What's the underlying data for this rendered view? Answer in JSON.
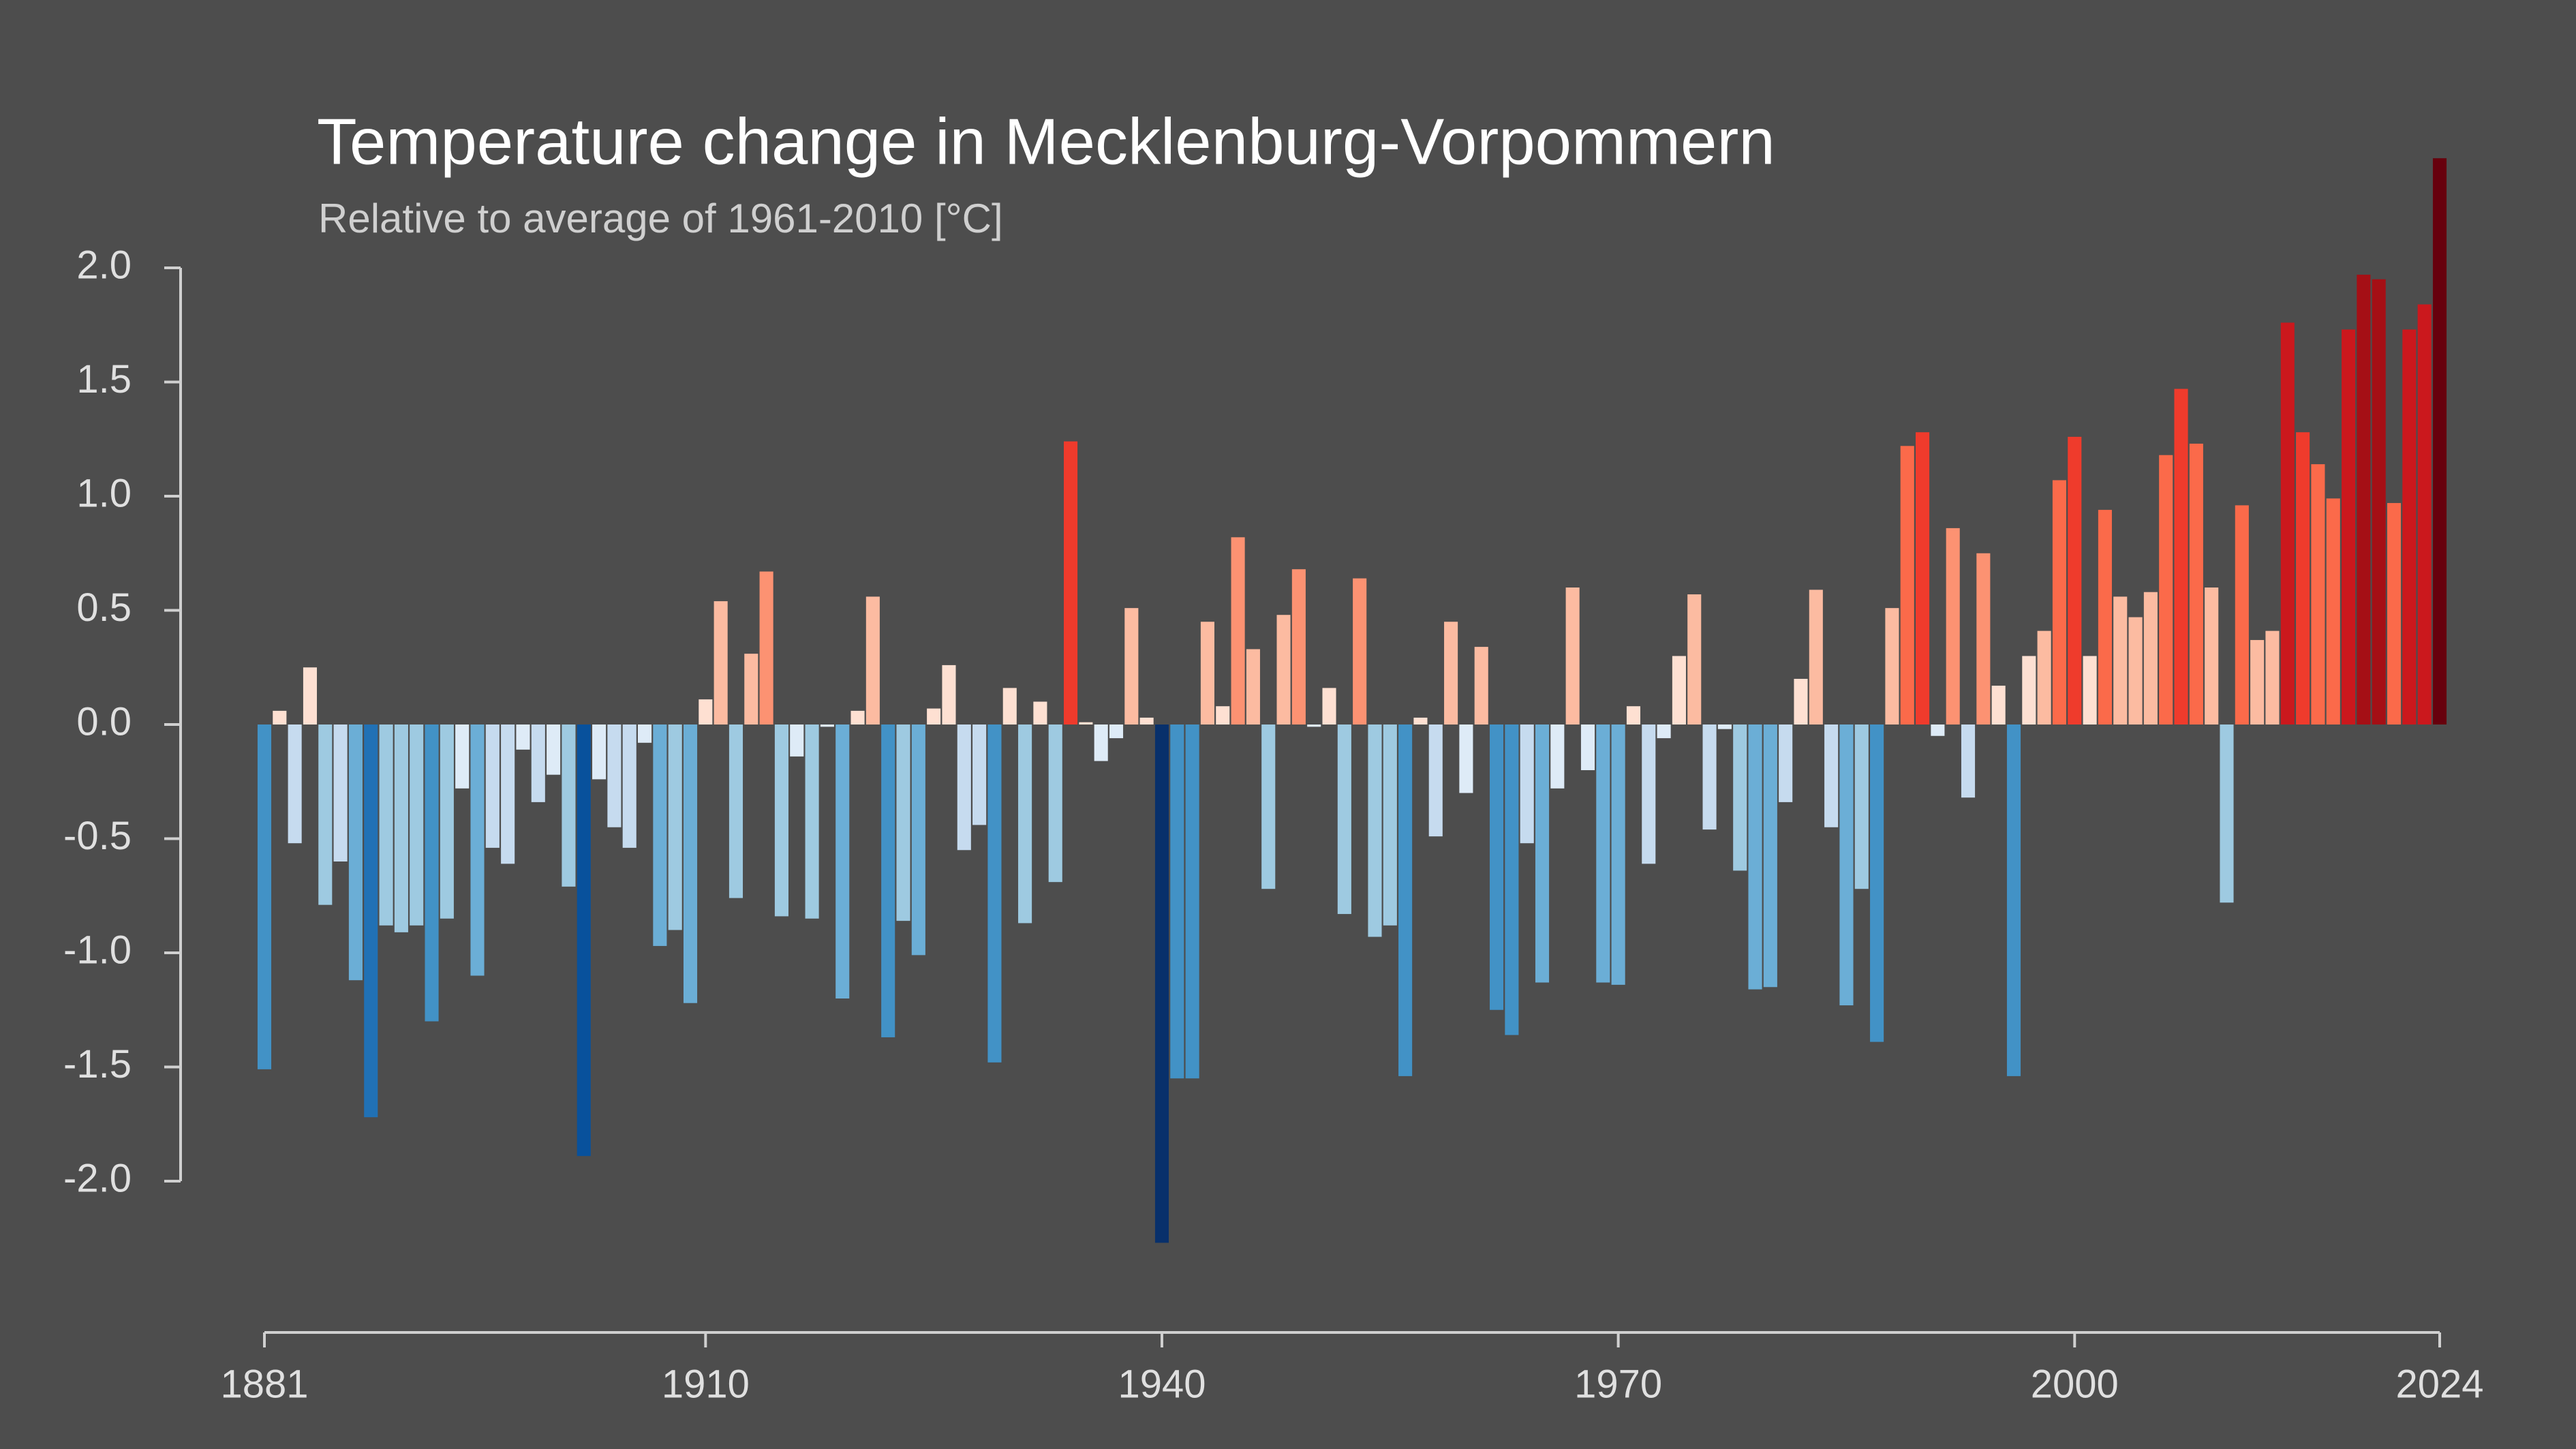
{
  "chart_data": {
    "type": "bar",
    "title": "Temperature change in Mecklenburg-Vorpommern",
    "subtitle": "Relative to average of 1961-2010  [°C]",
    "x": [
      1881,
      1882,
      1883,
      1884,
      1885,
      1886,
      1887,
      1888,
      1889,
      1890,
      1891,
      1892,
      1893,
      1894,
      1895,
      1896,
      1897,
      1898,
      1899,
      1900,
      1901,
      1902,
      1903,
      1904,
      1905,
      1906,
      1907,
      1908,
      1909,
      1910,
      1911,
      1912,
      1913,
      1914,
      1915,
      1916,
      1917,
      1918,
      1919,
      1920,
      1921,
      1922,
      1923,
      1924,
      1925,
      1926,
      1927,
      1928,
      1929,
      1930,
      1931,
      1932,
      1933,
      1934,
      1935,
      1936,
      1937,
      1938,
      1939,
      1940,
      1941,
      1942,
      1943,
      1944,
      1945,
      1946,
      1947,
      1948,
      1949,
      1950,
      1951,
      1952,
      1953,
      1954,
      1955,
      1956,
      1957,
      1958,
      1959,
      1960,
      1961,
      1962,
      1963,
      1964,
      1965,
      1966,
      1967,
      1968,
      1969,
      1970,
      1971,
      1972,
      1973,
      1974,
      1975,
      1976,
      1977,
      1978,
      1979,
      1980,
      1981,
      1982,
      1983,
      1984,
      1985,
      1986,
      1987,
      1988,
      1989,
      1990,
      1991,
      1992,
      1993,
      1994,
      1995,
      1996,
      1997,
      1998,
      1999,
      2000,
      2001,
      2002,
      2003,
      2004,
      2005,
      2006,
      2007,
      2008,
      2009,
      2010,
      2011,
      2012,
      2013,
      2014,
      2015,
      2016,
      2017,
      2018,
      2019,
      2020,
      2021,
      2022,
      2023,
      2024
    ],
    "values": [
      -1.51,
      0.06,
      -0.52,
      0.25,
      -0.79,
      -0.6,
      -1.12,
      -1.72,
      -0.88,
      -0.91,
      -0.88,
      -1.3,
      -0.85,
      -0.28,
      -1.1,
      -0.54,
      -0.61,
      -0.11,
      -0.34,
      -0.22,
      -0.71,
      -1.89,
      -0.24,
      -0.45,
      -0.54,
      -0.08,
      -0.97,
      -0.9,
      -1.22,
      0.11,
      0.54,
      -0.76,
      0.31,
      0.67,
      -0.84,
      -0.14,
      -0.85,
      -0.01,
      -1.2,
      0.06,
      0.56,
      -1.37,
      -0.86,
      -1.01,
      0.07,
      0.26,
      -0.55,
      -0.44,
      -1.48,
      0.16,
      -0.87,
      0.1,
      -0.69,
      1.24,
      0.01,
      -0.16,
      -0.06,
      0.51,
      0.03,
      -2.27,
      -1.55,
      -1.55,
      0.45,
      0.08,
      0.82,
      0.33,
      -0.72,
      0.48,
      0.68,
      -0.01,
      0.16,
      -0.83,
      0.64,
      -0.93,
      -0.88,
      -1.54,
      0.03,
      -0.49,
      0.45,
      -0.3,
      0.34,
      -1.25,
      -1.36,
      -0.52,
      -1.13,
      -0.28,
      0.6,
      -0.2,
      -1.13,
      -1.14,
      0.08,
      -0.61,
      -0.06,
      0.3,
      0.57,
      -0.46,
      -0.02,
      -0.64,
      -1.16,
      -1.15,
      -0.34,
      0.2,
      0.59,
      -0.45,
      -1.23,
      -0.72,
      -1.39,
      0.51,
      1.22,
      1.28,
      -0.05,
      0.86,
      -0.32,
      0.75,
      0.17,
      -1.54,
      0.3,
      0.41,
      1.07,
      1.26,
      0.3,
      0.94,
      0.56,
      0.47,
      0.58,
      1.18,
      1.47,
      1.23,
      0.6,
      -0.78,
      0.96,
      0.37,
      0.41,
      1.76,
      1.28,
      1.14,
      0.99,
      1.73,
      1.97,
      1.95,
      0.97,
      1.73,
      1.84,
      2.48
    ],
    "colormap": [
      "#08306b",
      "#08519c",
      "#2171b5",
      "#4292c6",
      "#6baed6",
      "#9ecae1",
      "#c6dbef",
      "#deebf7",
      "#fee0d2",
      "#fcbba1",
      "#fc9272",
      "#fb6a4a",
      "#ef3b2c",
      "#cb181d",
      "#a50f15",
      "#67000d"
    ],
    "xlim": [
      1881,
      2024
    ],
    "xticks": [
      1881,
      1910,
      1940,
      1970,
      2000,
      2024
    ],
    "ylim": [
      -2.6,
      2.6
    ],
    "yticks": [
      {
        "value": 2,
        "label": "2.0"
      },
      1.5,
      {
        "value": 1,
        "label": "1.0"
      },
      0.5,
      {
        "value": 0,
        "label": "0.0"
      },
      -0.5,
      {
        "value": -1,
        "label": "-1.0"
      },
      -1.5,
      {
        "value": -2,
        "label": "-2.0"
      }
    ]
  }
}
